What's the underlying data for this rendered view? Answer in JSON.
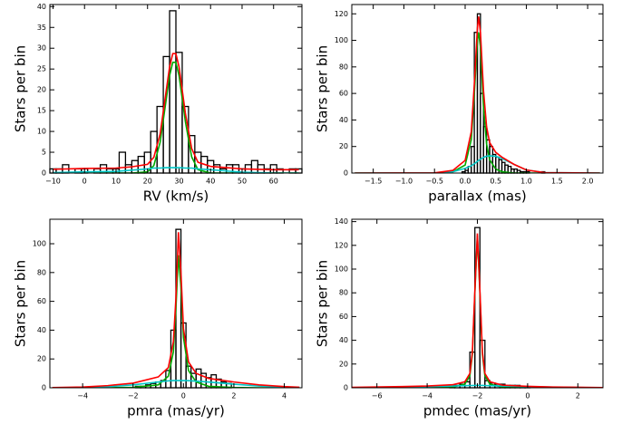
{
  "chart_data": [
    {
      "type": "histogram",
      "xlabel": "RV (km/s)",
      "ylabel": "Stars per bin",
      "xlim": [
        -11,
        69
      ],
      "ylim": [
        0,
        40.5
      ],
      "xticks": [
        {
          "value": -10,
          "label": "−10"
        },
        0,
        10,
        20,
        30,
        40,
        50,
        60
      ],
      "yticks": [
        0,
        5,
        10,
        15,
        20,
        25,
        30,
        35,
        40
      ],
      "bins": [
        -11,
        -9,
        -7,
        -5,
        -3,
        -1,
        1,
        3,
        5,
        7,
        9,
        11,
        13,
        15,
        17,
        19,
        21,
        23,
        25,
        27,
        29,
        31,
        33,
        35,
        37,
        39,
        41,
        43,
        45,
        47,
        49,
        51,
        53,
        55,
        57,
        59,
        61,
        63,
        65,
        67,
        69
      ],
      "values": [
        1,
        1,
        2,
        0,
        1,
        1,
        0,
        1,
        2,
        1,
        1,
        5,
        2,
        3,
        4,
        5,
        10,
        16,
        28,
        39,
        29,
        16,
        9,
        5,
        4,
        3,
        2,
        1,
        2,
        2,
        1,
        2,
        3,
        2,
        1,
        2,
        1,
        0,
        1,
        1
      ],
      "color": "#000000",
      "series": [
        {
          "color": "#00aa00",
          "x": [
            -10,
            0,
            10,
            15,
            20,
            22,
            24,
            26,
            27,
            28,
            29,
            30,
            32,
            34,
            36,
            40,
            50,
            60,
            68
          ],
          "values": [
            0,
            0,
            0,
            0,
            0.3,
            1.8,
            7.4,
            18.1,
            23.4,
            26.6,
            26.6,
            23.4,
            12.4,
            3.9,
            0.8,
            0,
            0,
            0,
            0
          ]
        },
        {
          "color": "#00c8c8",
          "x": [
            -10,
            0,
            10,
            15,
            20,
            22,
            24,
            26,
            27,
            28,
            29,
            30,
            32,
            34,
            36,
            40,
            50,
            60,
            68
          ],
          "values": [
            0.1,
            0.3,
            0.4,
            0.7,
            1,
            1.2,
            1.2,
            1.3,
            1.3,
            1.3,
            1.3,
            1.3,
            1.2,
            1.2,
            1,
            0.8,
            0.2,
            0,
            0
          ]
        },
        {
          "color": "#ff0000",
          "x": [
            -10,
            0,
            10,
            15,
            20,
            22,
            24,
            26,
            27,
            28,
            29,
            30,
            32,
            34,
            36,
            40,
            50,
            60,
            68
          ],
          "values": [
            0.9,
            1.1,
            1.2,
            1.5,
            2.1,
            3.8,
            9.4,
            20.2,
            25.5,
            28.7,
            28.7,
            25.5,
            14.4,
            5.9,
            2.6,
            1.6,
            1,
            0.8,
            0.8
          ]
        }
      ]
    },
    {
      "type": "histogram",
      "xlabel": "parallax (mas)",
      "ylabel": "Stars per bin",
      "xlim": [
        -1.85,
        2.25
      ],
      "ylim": [
        0,
        127
      ],
      "xticks": [
        {
          "value": -1.5,
          "label": "−1.5"
        },
        {
          "value": -1,
          "label": "−1.0"
        },
        {
          "value": -0.5,
          "label": "−0.5"
        },
        {
          "value": 0,
          "label": "0.0"
        },
        0.5,
        {
          "value": 1,
          "label": "1.0"
        },
        1.5,
        {
          "value": 2,
          "label": "2.0"
        }
      ],
      "yticks": [
        0,
        20,
        40,
        60,
        80,
        100,
        120
      ],
      "bins": [
        -0.1,
        -0.05,
        0,
        0.05,
        0.1,
        0.15,
        0.2,
        0.25,
        0.3,
        0.35,
        0.4,
        0.45,
        0.5,
        0.55,
        0.6,
        0.65,
        0.7,
        0.75,
        0.8,
        0.85,
        0.9,
        0.95,
        1,
        1.05,
        1.1,
        1.15,
        1.2,
        1.25,
        1.3,
        1.35,
        1.4
      ],
      "values": [
        0,
        1,
        2,
        5,
        20,
        106,
        120,
        60,
        35,
        25,
        20,
        14,
        12,
        10,
        8,
        6,
        5,
        3,
        3,
        2,
        1,
        1,
        1,
        0,
        0,
        0,
        0,
        1,
        0,
        0
      ],
      "color": "#000000",
      "series": [
        {
          "color": "#00aa00",
          "x": [
            -1.8,
            -0.5,
            -0.2,
            0,
            0.1,
            0.15,
            0.2,
            0.22,
            0.25,
            0.3,
            0.35,
            0.4,
            0.5,
            0.6,
            0.8,
            1,
            1.3,
            2.2
          ],
          "values": [
            0,
            0,
            1,
            6,
            25,
            60,
            100,
            106,
            95,
            50,
            22,
            10,
            3,
            1,
            0,
            0,
            0,
            0
          ]
        },
        {
          "color": "#00c8c8",
          "x": [
            -1.8,
            -0.5,
            -0.2,
            0,
            0.1,
            0.15,
            0.2,
            0.22,
            0.25,
            0.3,
            0.35,
            0.4,
            0.5,
            0.6,
            0.8,
            1,
            1.3,
            2.2
          ],
          "values": [
            0,
            0.1,
            1,
            3.5,
            5.5,
            7,
            8.8,
            9.5,
            10.5,
            11.8,
            12.7,
            13,
            12.6,
            11,
            6.5,
            2.3,
            0.3,
            0
          ]
        },
        {
          "color": "#ff0000",
          "x": [
            -1.8,
            -0.5,
            -0.2,
            0,
            0.1,
            0.15,
            0.2,
            0.22,
            0.25,
            0.3,
            0.35,
            0.4,
            0.5,
            0.6,
            0.8,
            1,
            1.3,
            2.2
          ],
          "values": [
            0,
            0.1,
            2,
            9.5,
            31,
            67,
            109,
            118,
            106,
            62,
            35,
            23,
            15.6,
            12,
            6.5,
            2.3,
            0.3,
            0
          ]
        }
      ]
    },
    {
      "type": "histogram",
      "xlabel": "pmra (mas/yr)",
      "ylabel": "Stars per bin",
      "xlim": [
        -5.3,
        4.7
      ],
      "ylim": [
        0,
        117
      ],
      "xticks": [
        {
          "value": -4,
          "label": "−4"
        },
        {
          "value": -2,
          "label": "−2"
        },
        0,
        2,
        4
      ],
      "yticks": [
        0,
        20,
        40,
        60,
        80,
        100
      ],
      "bins": [
        -1.9,
        -1.7,
        -1.5,
        -1.3,
        -1.1,
        -0.9,
        -0.7,
        -0.5,
        -0.3,
        -0.1,
        0.1,
        0.3,
        0.5,
        0.7,
        0.9,
        1.1,
        1.3,
        1.5,
        1.7,
        1.9
      ],
      "values": [
        1,
        1,
        2,
        3,
        4,
        5,
        12,
        40,
        110,
        45,
        15,
        10,
        13,
        10,
        7,
        9,
        6,
        4,
        3
      ],
      "color": "#000000",
      "series": [
        {
          "color": "#00aa00",
          "x": [
            -5.2,
            -4,
            -3,
            -2,
            -1,
            -0.6,
            -0.4,
            -0.3,
            -0.2,
            -0.1,
            0,
            0.2,
            0.5,
            1,
            2,
            3,
            4,
            4.6
          ],
          "values": [
            0,
            0,
            0,
            0.3,
            2,
            8,
            25,
            55,
            92,
            70,
            35,
            12,
            4,
            1,
            0.2,
            0,
            0,
            0
          ]
        },
        {
          "color": "#00c8c8",
          "x": [
            -5.2,
            -4,
            -3,
            -2,
            -1,
            -0.6,
            -0.4,
            -0.3,
            -0.2,
            -0.1,
            0,
            0.2,
            0.5,
            1,
            2,
            3,
            4,
            4.6
          ],
          "values": [
            0,
            0.2,
            0.8,
            2,
            4,
            4.8,
            5,
            5,
            5,
            5,
            5,
            4.9,
            4.6,
            4,
            2.5,
            1.2,
            0.4,
            0.2
          ]
        },
        {
          "color": "#ff0000",
          "x": [
            -5.2,
            -4,
            -3,
            -2,
            -1,
            -0.6,
            -0.4,
            -0.3,
            -0.2,
            -0.1,
            0,
            0.2,
            0.5,
            1,
            2,
            3,
            4,
            4.6
          ],
          "values": [
            0.1,
            0.5,
            1.5,
            3.2,
            7.5,
            14,
            32,
            62,
            108,
            80,
            41,
            18,
            10,
            6.5,
            4,
            2,
            0.8,
            0.4
          ]
        }
      ]
    },
    {
      "type": "histogram",
      "xlabel": "pmdec (mas/yr)",
      "ylabel": "Stars per bin",
      "xlim": [
        -7,
        3
      ],
      "ylim": [
        0,
        142
      ],
      "xticks": [
        {
          "value": -6,
          "label": "−6"
        },
        {
          "value": -4,
          "label": "−4"
        },
        {
          "value": -2,
          "label": "−2"
        },
        0,
        2
      ],
      "yticks": [
        0,
        20,
        40,
        60,
        80,
        100,
        120,
        140
      ],
      "bins": [
        -3.1,
        -2.9,
        -2.7,
        -2.5,
        -2.3,
        -2.1,
        -1.9,
        -1.7,
        -1.5,
        -1.3,
        -1.1,
        -0.9,
        -0.7,
        -0.5,
        -0.3,
        -0.1,
        0.1
      ],
      "values": [
        2,
        2,
        3,
        5,
        30,
        135,
        40,
        6,
        4,
        3,
        3,
        2,
        2,
        2,
        1,
        1
      ],
      "color": "#000000",
      "series": [
        {
          "color": "#00aa00",
          "x": [
            -7,
            -5,
            -4,
            -3,
            -2.5,
            -2.3,
            -2.2,
            -2.1,
            -2,
            -1.9,
            -1.8,
            -1.7,
            -1.5,
            -1,
            0,
            1,
            3
          ],
          "values": [
            0,
            0,
            0,
            0.5,
            3,
            10,
            28,
            80,
            128,
            80,
            28,
            10,
            3,
            0.5,
            0,
            0,
            0
          ]
        },
        {
          "color": "#00c8c8",
          "x": [
            -7,
            -5,
            -4,
            -3,
            -2.5,
            -2.3,
            -2.2,
            -2.1,
            -2,
            -1.9,
            -1.8,
            -1.7,
            -1.5,
            -1,
            0,
            1,
            3
          ],
          "values": [
            0,
            0.5,
            1,
            1.5,
            1.8,
            1.9,
            1.9,
            2,
            2,
            2,
            2,
            1.9,
            1.8,
            1.5,
            1,
            0.5,
            0
          ]
        },
        {
          "color": "#ff0000",
          "x": [
            -7,
            -5,
            -4,
            -3,
            -2.5,
            -2.3,
            -2.2,
            -2.1,
            -2,
            -1.9,
            -1.8,
            -1.7,
            -1.5,
            -1,
            0,
            1,
            3
          ],
          "values": [
            0.3,
            1,
            1.5,
            2.5,
            5,
            12,
            30,
            82,
            130,
            82,
            30,
            12,
            5,
            2.2,
            1.2,
            0.6,
            0.2
          ]
        }
      ]
    }
  ]
}
